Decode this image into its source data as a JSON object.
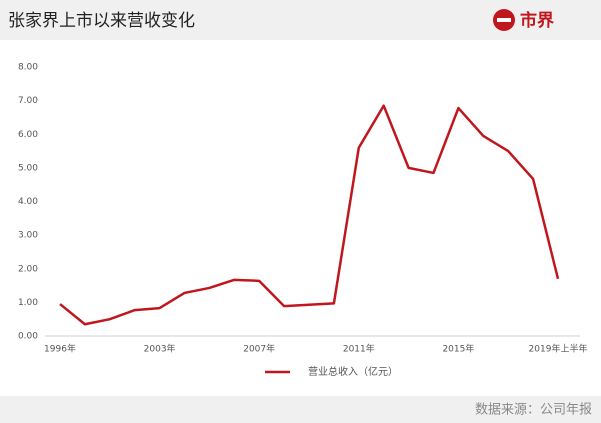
{
  "header": {
    "title": "张家界上市以来营收变化",
    "logo": "市界"
  },
  "chart_data": {
    "type": "line",
    "categories": [
      "1996年",
      null,
      null,
      null,
      "2003年",
      null,
      null,
      null,
      "2007年",
      null,
      null,
      null,
      "2011年",
      null,
      null,
      null,
      "2015年",
      null,
      null,
      null,
      "2019年上半年"
    ],
    "series": [
      {
        "name": "营业总收入（亿元）",
        "color": "#c0171e",
        "values": [
          0.95,
          0.35,
          0.5,
          0.77,
          0.83,
          1.28,
          1.43,
          1.67,
          1.64,
          0.89,
          0.93,
          0.97,
          5.6,
          6.85,
          5.0,
          4.85,
          6.78,
          5.95,
          5.5,
          4.67,
          1.7
        ]
      }
    ],
    "ylim": [
      0,
      8
    ],
    "yticks": [
      {
        "value": 0,
        "label": "0.00"
      },
      {
        "value": 1,
        "label": "1.00"
      },
      {
        "value": 2,
        "label": "2.00"
      },
      {
        "value": 3,
        "label": "3.00"
      },
      {
        "value": 4,
        "label": "4.00"
      },
      {
        "value": 5,
        "label": "5.00"
      },
      {
        "value": 6,
        "label": "6.00"
      },
      {
        "value": 7,
        "label": "7.00"
      },
      {
        "value": 8,
        "label": "8.00"
      }
    ],
    "legend": "bottom"
  },
  "footer": {
    "source": "数据来源：公司年报"
  }
}
